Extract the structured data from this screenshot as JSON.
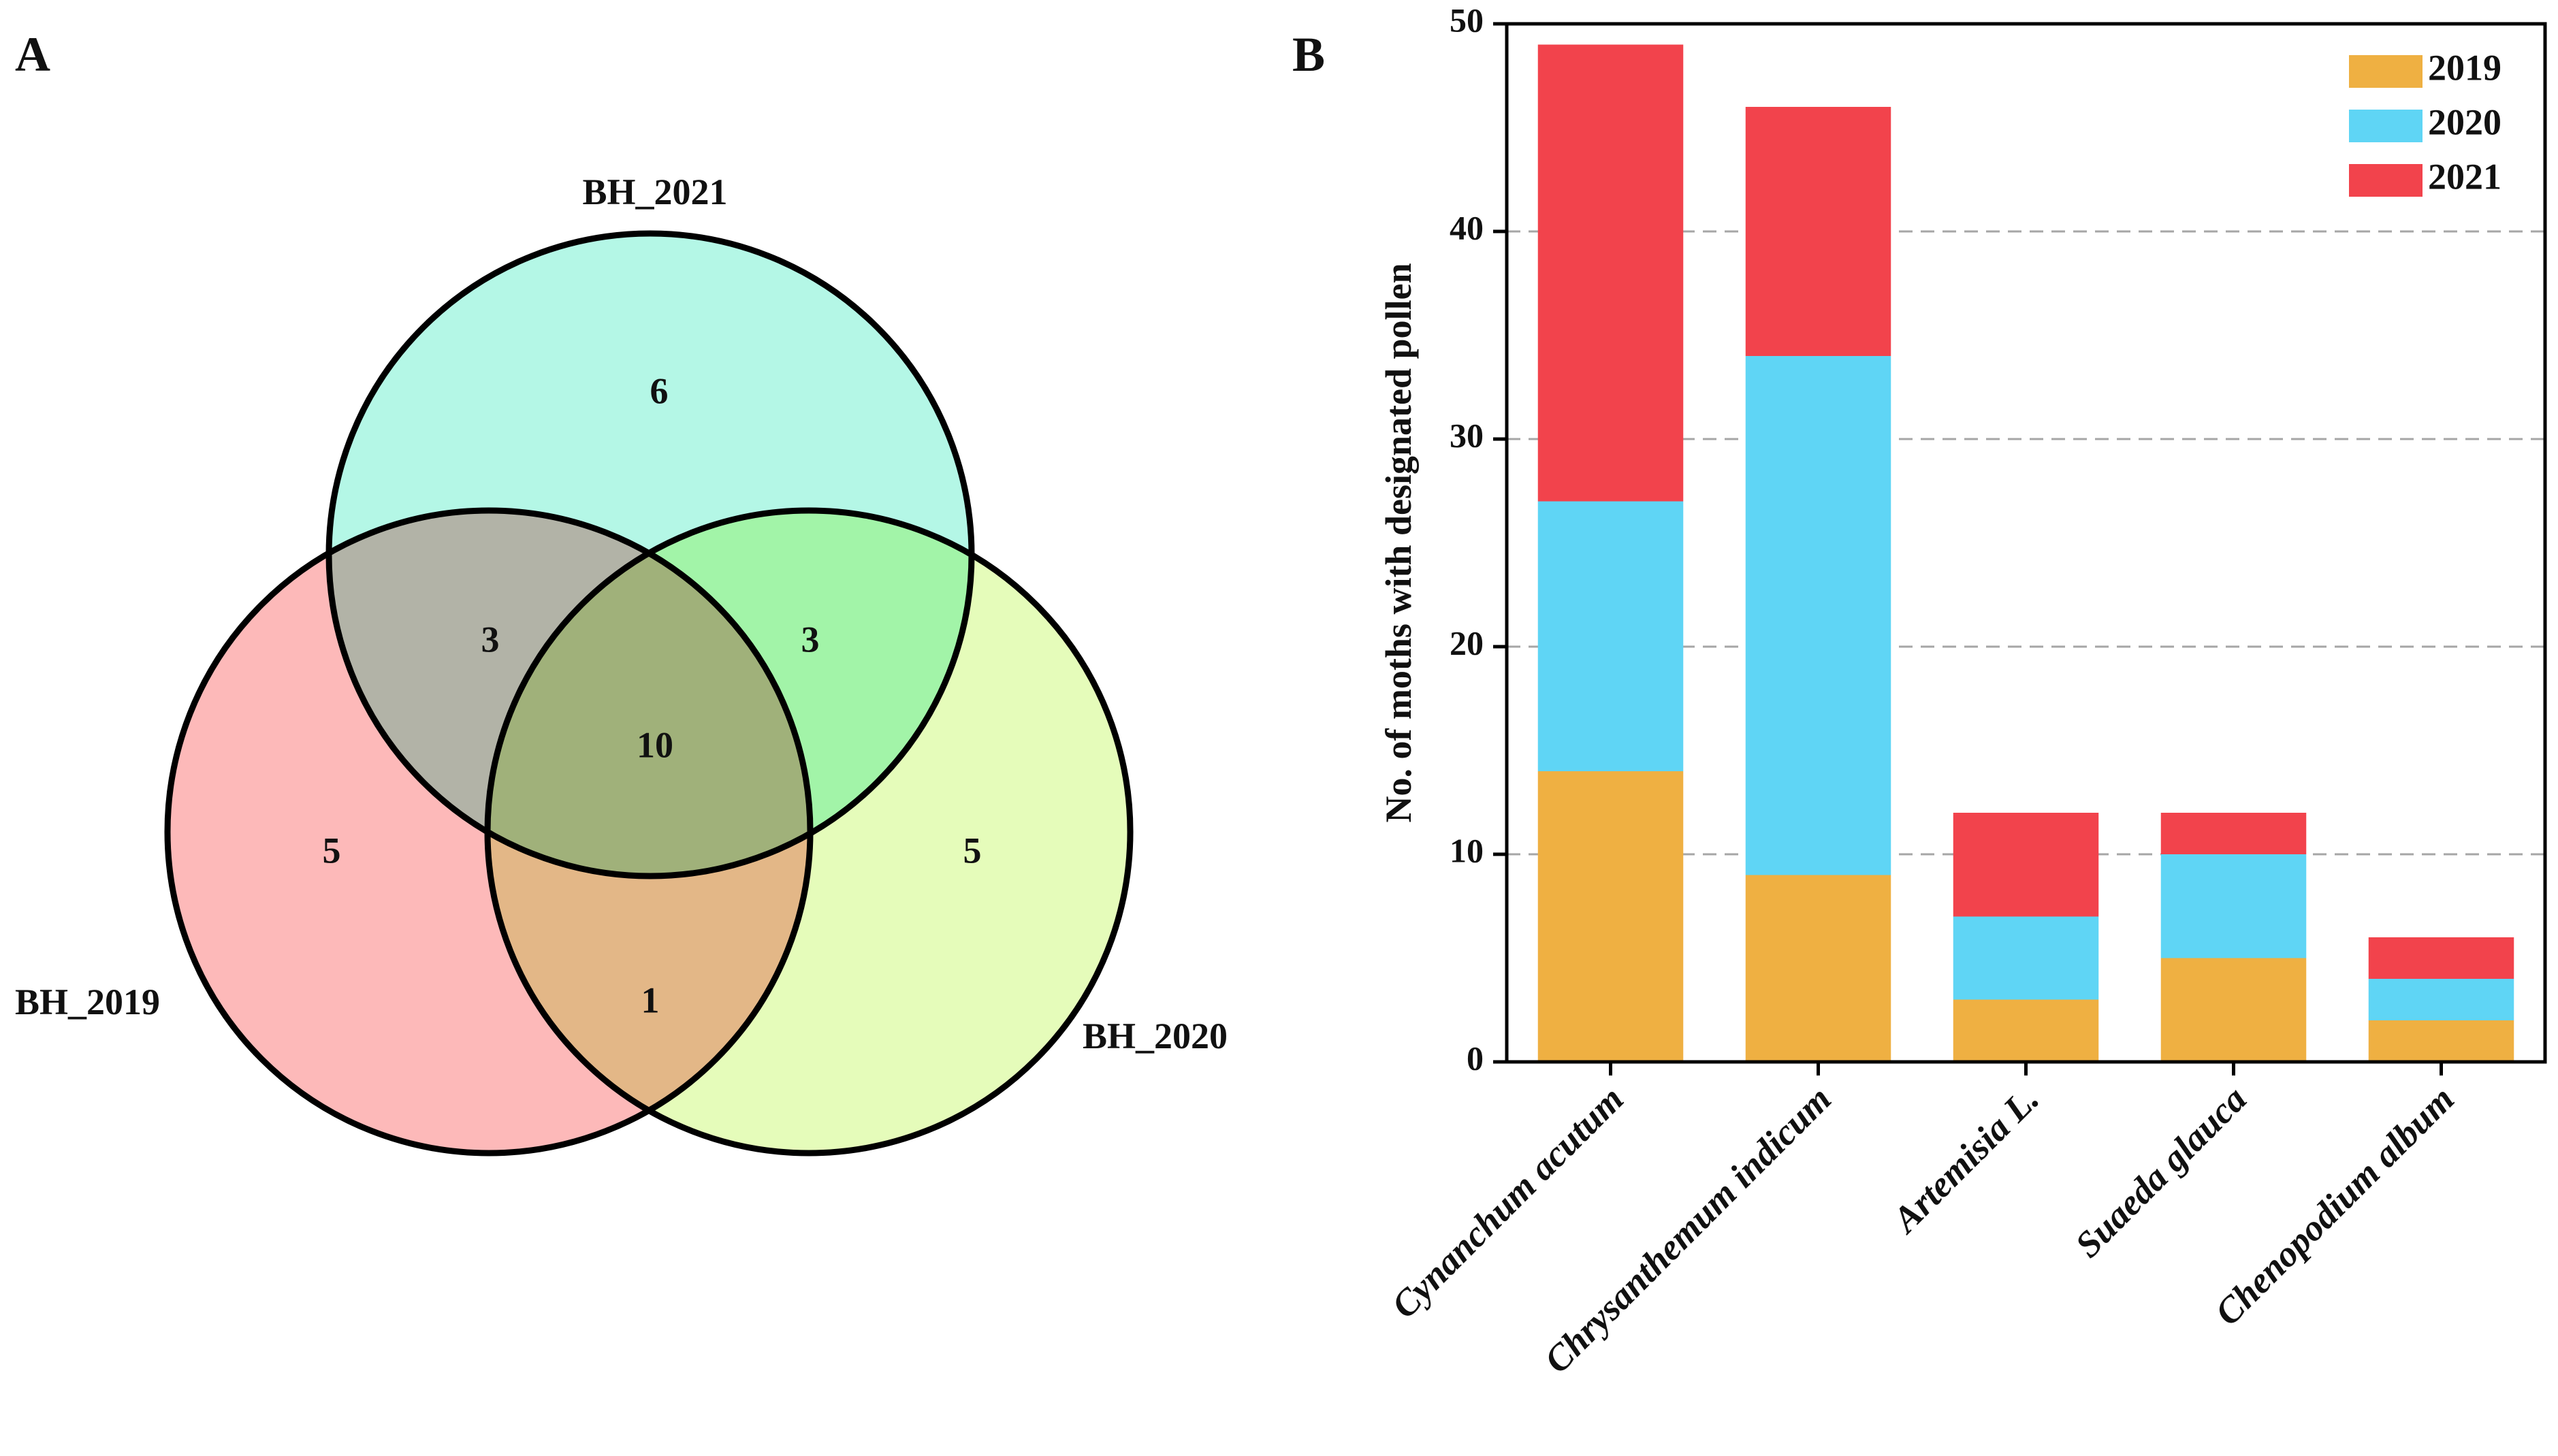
{
  "panels": {
    "venn_letter": "A",
    "chart_letter": "B"
  },
  "venn": {
    "sets": [
      {
        "key": "BH_2021",
        "label": "BH_2021",
        "color": "#a7f6e2"
      },
      {
        "key": "BH_2019",
        "label": "BH_2019",
        "color": "#fdadad"
      },
      {
        "key": "BH_2020",
        "label": "BH_2020",
        "color": "#e0fcae"
      }
    ],
    "regions": [
      {
        "sets": [
          "BH_2021"
        ],
        "count": "6"
      },
      {
        "sets": [
          "BH_2019"
        ],
        "count": "5"
      },
      {
        "sets": [
          "BH_2020"
        ],
        "count": "5"
      },
      {
        "sets": [
          "BH_2019",
          "BH_2021"
        ],
        "count": "3"
      },
      {
        "sets": [
          "BH_2020",
          "BH_2021"
        ],
        "count": "3"
      },
      {
        "sets": [
          "BH_2019",
          "BH_2020"
        ],
        "count": "1"
      },
      {
        "sets": [
          "BH_2019",
          "BH_2020",
          "BH_2021"
        ],
        "count": "10"
      }
    ]
  },
  "chart_data": {
    "type": "bar",
    "stacked": true,
    "categories": [
      "Cynanchum acutum",
      "Chrysanthemum indicum",
      "Artemisia L.",
      "Suaeda glauca",
      "Chenopodium album"
    ],
    "series": [
      {
        "name": "2019",
        "color": "#efb042",
        "values": [
          14,
          9,
          3,
          5,
          2
        ]
      },
      {
        "name": "2020",
        "color": "#5fd5f5",
        "values": [
          13,
          25,
          4,
          5,
          2
        ]
      },
      {
        "name": "2021",
        "color": "#f2434c",
        "values": [
          22,
          12,
          5,
          2,
          2
        ]
      }
    ],
    "ylabel": "No. of moths with designated pollen",
    "xlabel": "",
    "ylim": [
      0,
      50
    ],
    "yticks": [
      "0",
      "10",
      "20",
      "30",
      "40",
      "50"
    ],
    "grid": true,
    "legend": "top-right"
  }
}
